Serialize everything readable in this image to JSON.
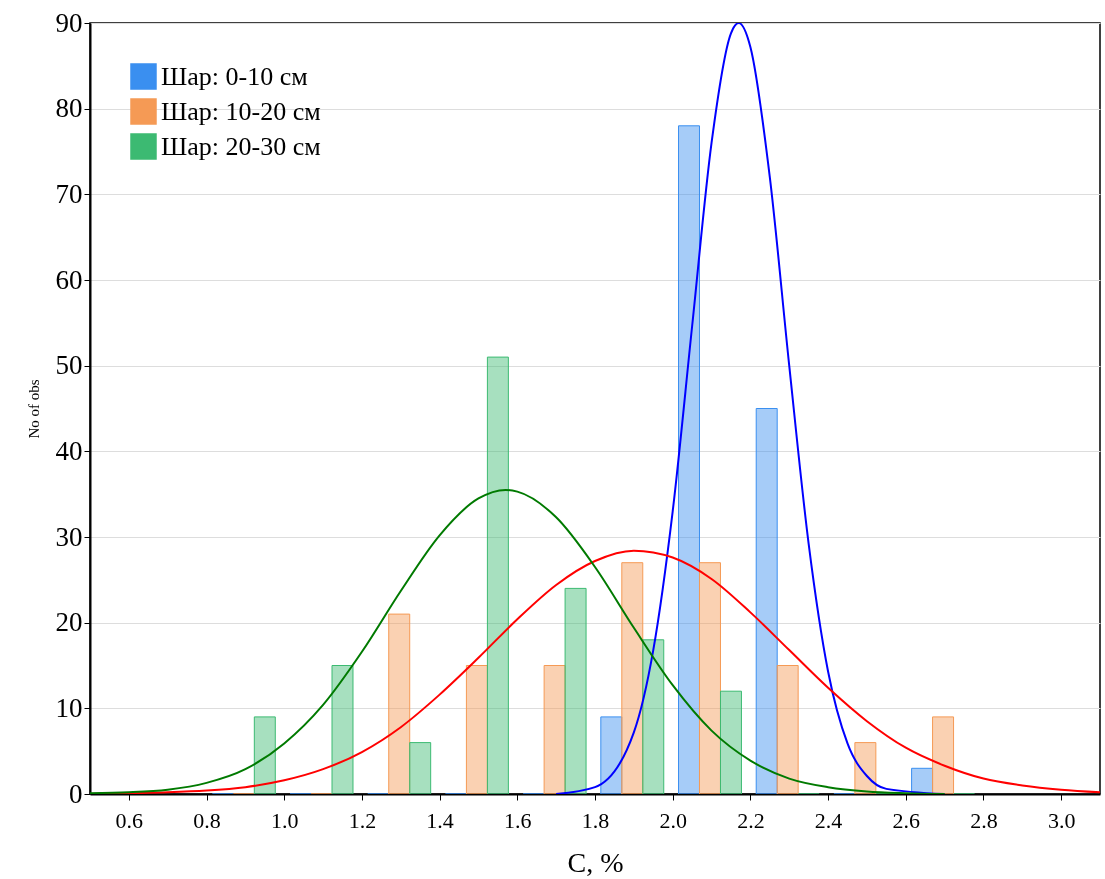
{
  "chart_data": {
    "type": "histogram",
    "xlabel": "C, %",
    "ylabel": "No of obs",
    "bins": [
      0.8,
      1.0,
      1.2,
      1.4,
      1.6,
      1.8,
      2.0,
      2.2,
      2.4,
      2.6,
      2.8
    ],
    "series": [
      {
        "name": "Шар: 0-10 см",
        "color": "#3a8ff0",
        "values": [
          0,
          0,
          0,
          0,
          0,
          9,
          78,
          45,
          0,
          3
        ]
      },
      {
        "name": "Шар: 10-20 см",
        "color": "#f59a55",
        "values": [
          0,
          0,
          21,
          15,
          15,
          27,
          27,
          15,
          6,
          9
        ]
      },
      {
        "name": "Шар: 20-30 см",
        "color": "#3cba72",
        "values": [
          9,
          15,
          6,
          51,
          24,
          18,
          12,
          0,
          0,
          0
        ]
      },
      {
        "type": "line",
        "color": "#0000ff",
        "x": [
          1.7,
          1.8,
          1.9,
          1.95,
          2.0,
          2.05,
          2.1,
          2.15,
          2.17,
          2.2,
          2.25,
          2.3,
          2.35,
          2.4,
          2.45,
          2.5,
          2.55,
          2.7
        ],
        "values": [
          0,
          0.8,
          7.2,
          16.8,
          33,
          54.6,
          76,
          88.8,
          90,
          87.2,
          72,
          50,
          29.2,
          14.3,
          5.9,
          2.1,
          0.6,
          0
        ]
      },
      {
        "type": "line",
        "color": "#ff0000",
        "x": [
          0.5,
          0.6,
          0.7,
          0.8,
          0.9,
          1.0,
          1.1,
          1.2,
          1.3,
          1.4,
          1.5,
          1.6,
          1.7,
          1.8,
          1.9,
          2.0,
          2.1,
          2.2,
          2.3,
          2.4,
          2.5,
          2.6,
          2.7,
          2.8,
          2.9,
          3.0,
          3.1
        ],
        "values": [
          0,
          0.1,
          0.2,
          0.4,
          0.8,
          1.6,
          2.9,
          4.9,
          7.8,
          11.6,
          15.9,
          20.4,
          24.4,
          27.2,
          28.4,
          27.6,
          25.1,
          21.2,
          16.8,
          12.4,
          8.5,
          5.4,
          3.3,
          1.8,
          1.0,
          0.5,
          0.2
        ]
      },
      {
        "type": "line",
        "color": "#007a00",
        "x": [
          0.5,
          0.6,
          0.7,
          0.8,
          0.9,
          1.0,
          1.1,
          1.2,
          1.3,
          1.4,
          1.5,
          1.57,
          1.6,
          1.7,
          1.8,
          1.9,
          2.0,
          2.1,
          2.2,
          2.3,
          2.4,
          2.5,
          2.6,
          2.7
        ],
        "values": [
          0.1,
          0.2,
          0.5,
          1.3,
          2.9,
          5.9,
          10.4,
          16.6,
          23.7,
          30.2,
          34.5,
          35.5,
          35.3,
          32.3,
          26.5,
          19.4,
          12.7,
          7.4,
          3.9,
          1.8,
          0.8,
          0.3,
          0.1,
          0
        ]
      }
    ],
    "xlim": [
      0.5,
      3.1
    ],
    "xticks": [
      {
        "value": 0.6,
        "label": "0.6"
      },
      {
        "value": 0.8,
        "label": "0.8"
      },
      {
        "value": 1.0,
        "label": "1.0"
      },
      {
        "value": 1.2,
        "label": "1.2"
      },
      {
        "value": 1.4,
        "label": "1.4"
      },
      {
        "value": 1.6,
        "label": "1.6"
      },
      {
        "value": 1.8,
        "label": "1.8"
      },
      {
        "value": 2.0,
        "label": "2.0"
      },
      {
        "value": 2.2,
        "label": "2.2"
      },
      {
        "value": 2.4,
        "label": "2.4"
      },
      {
        "value": 2.6,
        "label": "2.6"
      },
      {
        "value": 2.8,
        "label": "2.8"
      },
      {
        "value": 3.0,
        "label": "3.0"
      }
    ],
    "ylim": [
      0,
      90
    ],
    "yticks": [
      0,
      10,
      20,
      30,
      40,
      50,
      60,
      70,
      80,
      90
    ],
    "grid": "y",
    "legend": "top left"
  }
}
